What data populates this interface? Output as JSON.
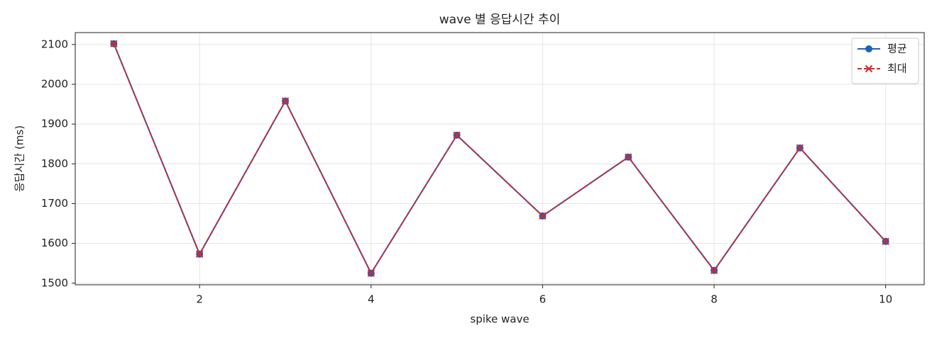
{
  "chart_data": {
    "type": "line",
    "title": "wave 별 응답시간 추이",
    "xlabel": "spike wave",
    "ylabel": "응답시간 (ms)",
    "x": [
      1,
      2,
      3,
      4,
      5,
      6,
      7,
      8,
      9,
      10
    ],
    "series": [
      {
        "name": "평균",
        "color": "#1f5fbf",
        "marker": "o",
        "linestyle": "solid",
        "values": [
          2102,
          1573,
          1958,
          1525,
          1872,
          1669,
          1817,
          1532,
          1840,
          1605
        ]
      },
      {
        "name": "최대",
        "color": "#d62728",
        "marker": "x",
        "linestyle": "dashed",
        "values": [
          2102,
          1573,
          1958,
          1525,
          1872,
          1669,
          1817,
          1532,
          1840,
          1605
        ]
      }
    ],
    "xlim": [
      0.55,
      10.45
    ],
    "ylim": [
      1496,
      2130
    ],
    "xticks": [
      2,
      4,
      6,
      8,
      10
    ],
    "yticks": [
      1500,
      1600,
      1700,
      1800,
      1900,
      2000,
      2100
    ],
    "grid": true,
    "legend": "upper right"
  }
}
